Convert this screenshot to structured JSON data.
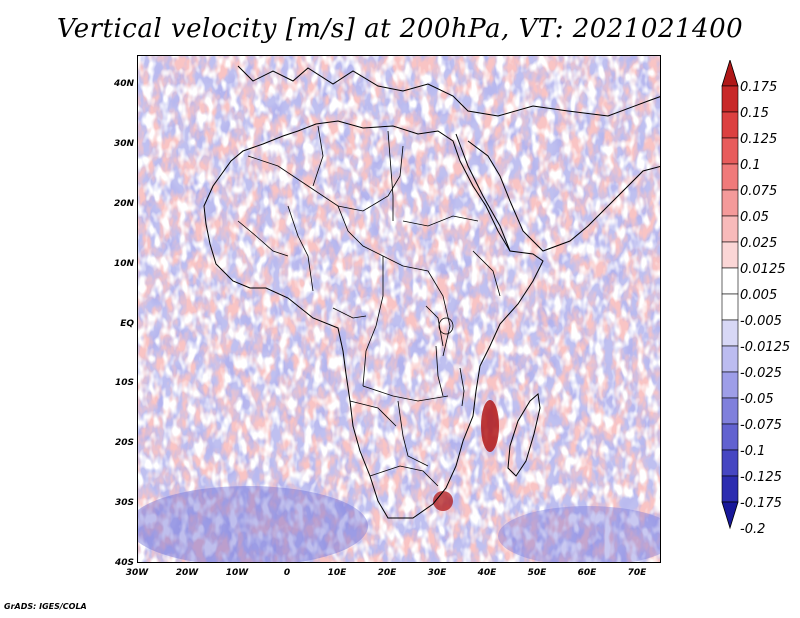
{
  "title": "Vertical velocity [m/s] at 200hPa, VT: 2021021400",
  "footer": "GrADS: IGES/COLA",
  "map": {
    "lat_ticks": [
      "40N",
      "30N",
      "20N",
      "10N",
      "EQ",
      "10S",
      "20S",
      "30S",
      "40S"
    ],
    "lon_ticks": [
      "30W",
      "20W",
      "10W",
      "0",
      "10E",
      "20E",
      "30E",
      "40E",
      "50E",
      "60E",
      "70E"
    ]
  },
  "colorbar": {
    "labels": [
      "0.175",
      "0.15",
      "0.125",
      "0.1",
      "0.075",
      "0.05",
      "0.025",
      "0.0125",
      "0.005",
      "-0.005",
      "-0.0125",
      "-0.025",
      "-0.05",
      "-0.075",
      "-0.1",
      "-0.125",
      "-0.175",
      "-0.2"
    ],
    "colors": [
      "#b01818",
      "#c82828",
      "#dc4040",
      "#e85c5c",
      "#f07a7a",
      "#f49a9a",
      "#f8baba",
      "#fbd6d6",
      "#ffffff",
      "#ffffff",
      "#d8d8f6",
      "#bcbcf0",
      "#9e9ee8",
      "#8080dc",
      "#6262d0",
      "#4646c2",
      "#2c2cb0",
      "#18189a"
    ]
  }
}
